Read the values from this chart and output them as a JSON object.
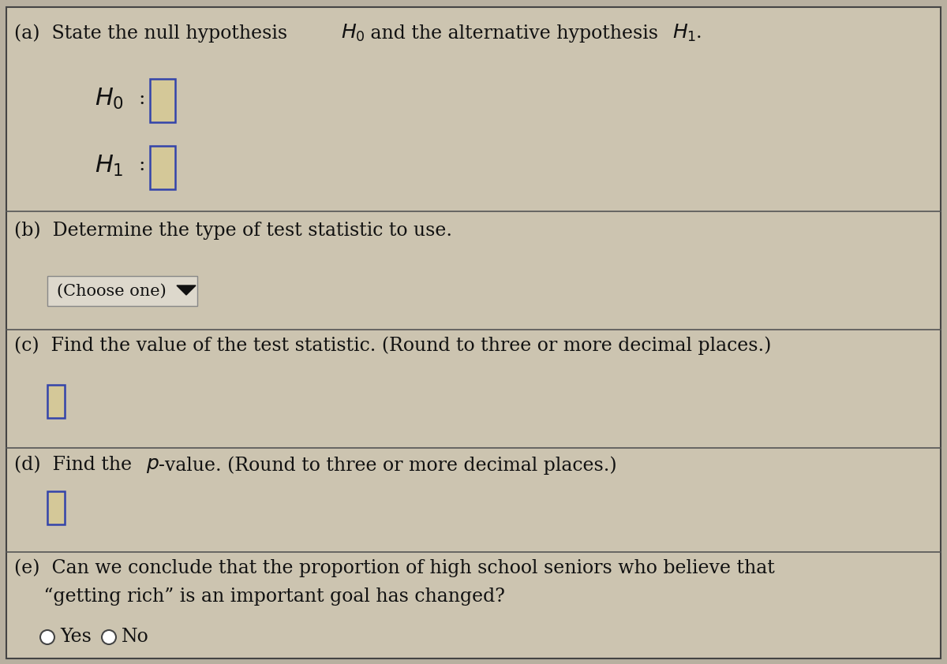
{
  "bg_outer": "#b8b0a0",
  "bg_panel": "#ccc4b0",
  "border_color": "#444444",
  "divider_color": "#555555",
  "text_color": "#111111",
  "input_box_fill": "#d4c898",
  "input_box_border": "#3344aa",
  "input_box_fill_c": "#d4c898",
  "input_box_border_c": "#3344aa",
  "input_box_fill_d": "#d4c898",
  "input_box_border_d": "#3344aa",
  "dropdown_bg": "#ddd8cc",
  "dropdown_border": "#888888",
  "section_a_title": "(a)  State the null hypothesis ",
  "section_a_h0": "H₀",
  "section_a_mid": " and the alternative hypothesis ",
  "section_a_h1": "H₁",
  "section_a_end": ".",
  "h0_label": "H₀",
  "h0_colon": " :",
  "h1_label": "H₁",
  "h1_colon": " :",
  "section_b": "(b)  Determine the type of test statistic to use.",
  "choose_one": "(Choose one)  ▼",
  "section_c": "(c)  Find the value of the test statistic. (Round to three or more decimal places.)",
  "section_d_pre": "(d)  Find the ",
  "section_d_p": "p",
  "section_d_post": "-value. (Round to three or more decimal places.)",
  "section_e_line1": "(e)  Can we conclude that the proportion of high school seniors who believe that",
  "section_e_line2": "     “getting rich” is an important goal has changed?",
  "yes_label": "Yes",
  "no_label": "No",
  "font_size": 16,
  "font_size_small": 14,
  "font_size_h": 18
}
